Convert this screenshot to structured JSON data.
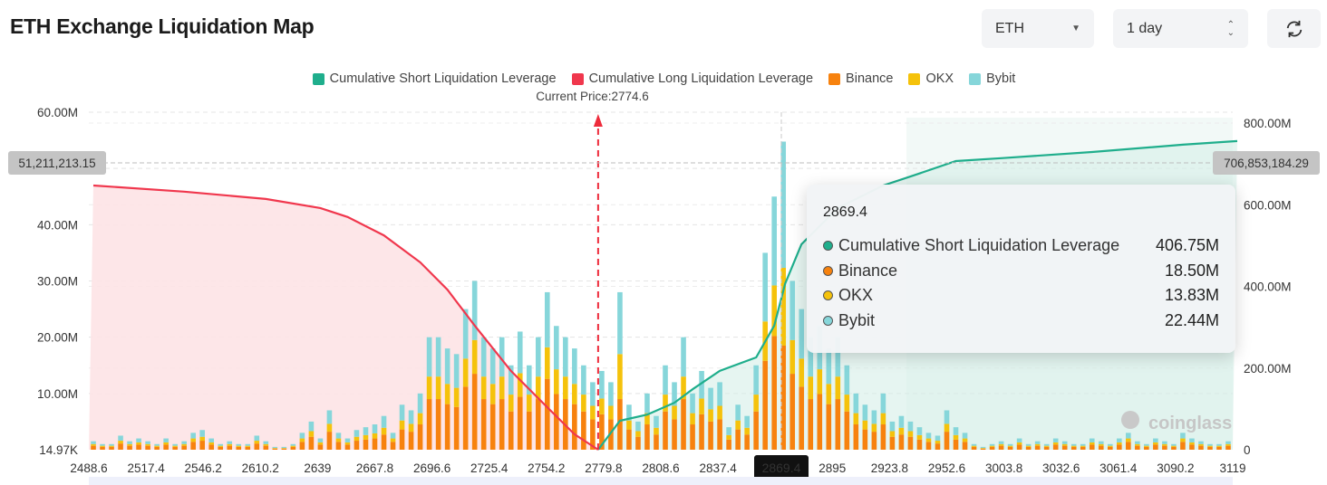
{
  "header": {
    "title": "ETH Exchange Liquidation Map",
    "symbol_select": "ETH",
    "range_select": "1 day",
    "refresh_icon": "refresh-icon"
  },
  "colors": {
    "short": "#1fae8c",
    "long": "#f0374d",
    "binance": "#f7820e",
    "okx": "#f5c20b",
    "bybit": "#86d6da"
  },
  "chart_data": {
    "type": "bar",
    "legend": [
      "Cumulative Short Liquidation Leverage",
      "Cumulative Long Liquidation Leverage",
      "Binance",
      "OKX",
      "Bybit"
    ],
    "legend_placement": "top",
    "current_price_label": "Current Price:2774.6",
    "current_price": 2774.6,
    "x_tick_labels": [
      "2488.6",
      "2517.4",
      "2546.2",
      "2610.2",
      "2639",
      "2667.8",
      "2696.6",
      "2725.4",
      "2754.2",
      "2779.8",
      "2808.6",
      "2837.4",
      "2869.4",
      "2895",
      "2923.8",
      "2952.6",
      "3003.8",
      "3032.6",
      "3061.4",
      "3090.2",
      "3119"
    ],
    "y_left": {
      "ticks": [
        "14.97K",
        "10.00M",
        "20.00M",
        "30.00M",
        "40.00M",
        "60.00M"
      ],
      "range": [
        0,
        60000000
      ]
    },
    "y_right": {
      "ticks": [
        "0",
        "200.00M",
        "400.00M",
        "600.00M",
        "800.00M"
      ],
      "range": [
        0,
        800000000
      ]
    },
    "crosshair": {
      "left_value": "51,211,213.15",
      "right_value": "706,853,184.29",
      "x_label": "2869.4"
    },
    "series_bars_M": {
      "binance": [
        0.7,
        0.5,
        0.5,
        1.1,
        0.7,
        0.9,
        0.7,
        0.5,
        0.9,
        0.5,
        0.7,
        1.4,
        1.6,
        0.9,
        0.5,
        0.7,
        0.5,
        0.5,
        1.1,
        0.7,
        0.2,
        0.2,
        0.5,
        1.4,
        2.3,
        0.9,
        3.2,
        1.4,
        0.9,
        1.6,
        1.8,
        2,
        2.7,
        1.4,
        3.6,
        3.2,
        4.5,
        9,
        9,
        8.1,
        7.6,
        11.2,
        13.5,
        9,
        8.1,
        9,
        6.8,
        9.4,
        6.8,
        9,
        12.6,
        9.9,
        9,
        8.1,
        6.8,
        5.4,
        6.3,
        5.4,
        9,
        3.6,
        2.3,
        4.5,
        2.7,
        6.8,
        5.4,
        9,
        4.5,
        6.3,
        5,
        5.4,
        1.8,
        3.6,
        2.7,
        6.8,
        15.8,
        20.2,
        18.5,
        13.5,
        11.2,
        9,
        9.9,
        8.1,
        9,
        6.8,
        4.5,
        3.6,
        3.2,
        4.5,
        2.3,
        2.7,
        2.3,
        1.8,
        1.4,
        1.1,
        3.2,
        1.8,
        1.4,
        0.5,
        0.2,
        0.5,
        0.7,
        0.5,
        0.9,
        0.5,
        0.7,
        0.5,
        0.9,
        0.7,
        0.5,
        0.5,
        0.9,
        0.7,
        0.5,
        0.9,
        1.4,
        0.7,
        0.5,
        0.9,
        0.7,
        0.5,
        1.4,
        0.9,
        0.7,
        0.5,
        0.5,
        0.7
      ],
      "okx": [
        0.3,
        0.2,
        0.2,
        0.5,
        0.3,
        0.4,
        0.3,
        0.2,
        0.4,
        0.2,
        0.3,
        0.6,
        0.7,
        0.4,
        0.2,
        0.3,
        0.2,
        0.2,
        0.5,
        0.3,
        0.1,
        0.1,
        0.2,
        0.6,
        1,
        0.4,
        1.4,
        0.6,
        0.4,
        0.7,
        0.8,
        0.9,
        1.2,
        0.6,
        1.6,
        1.4,
        2,
        4,
        4,
        3.6,
        3.4,
        5,
        6,
        4,
        3.6,
        4,
        3,
        4.2,
        3,
        4,
        5.6,
        4.4,
        4,
        3.6,
        3,
        2.4,
        2.8,
        2.4,
        8,
        1.6,
        1,
        2,
        1.2,
        3,
        2.4,
        4,
        2,
        2.8,
        2.2,
        2.4,
        0.8,
        1.6,
        1.2,
        3,
        7,
        9,
        13.83,
        6,
        5,
        4,
        4.4,
        3.6,
        4,
        3,
        2,
        1.6,
        1.4,
        2,
        1,
        1.2,
        1,
        0.8,
        0.6,
        0.5,
        1.4,
        0.8,
        0.6,
        0.2,
        0.1,
        0.2,
        0.3,
        0.2,
        0.4,
        0.2,
        0.3,
        0.2,
        0.4,
        0.3,
        0.2,
        0.2,
        0.4,
        0.3,
        0.2,
        0.4,
        0.6,
        0.3,
        0.2,
        0.4,
        0.3,
        0.2,
        0.6,
        0.4,
        0.3,
        0.2,
        0.2,
        0.3
      ],
      "bybit": [
        0.5,
        0.3,
        0.3,
        0.9,
        0.5,
        0.7,
        0.5,
        0.3,
        0.7,
        0.3,
        0.5,
        1,
        1.2,
        0.7,
        0.3,
        0.5,
        0.3,
        0.3,
        0.9,
        0.5,
        0.2,
        0.2,
        0.3,
        1,
        1.7,
        0.7,
        2.4,
        1,
        0.7,
        1.2,
        1.4,
        1.6,
        2.1,
        1,
        2.8,
        2.4,
        3.5,
        7,
        7,
        6.3,
        6,
        8.8,
        10.5,
        7,
        6.3,
        7,
        5.2,
        7.4,
        5.2,
        7,
        9.8,
        7.7,
        7,
        6.3,
        5.2,
        4.2,
        4.9,
        4.2,
        11,
        2.8,
        1.7,
        3.5,
        2.1,
        5.2,
        4.2,
        7,
        3.5,
        4.9,
        3.8,
        4.2,
        1.4,
        2.8,
        2.1,
        5.2,
        12.2,
        15.8,
        22.44,
        10.5,
        8.8,
        7,
        7.7,
        6.3,
        7,
        5.2,
        3.5,
        2.8,
        2.4,
        3.5,
        1.7,
        2.1,
        1.7,
        1.4,
        1,
        0.9,
        2.4,
        1.4,
        1,
        0.3,
        0.2,
        0.3,
        0.5,
        0.3,
        0.7,
        0.3,
        0.5,
        0.3,
        0.7,
        0.5,
        0.3,
        0.3,
        0.7,
        0.5,
        0.3,
        0.7,
        1,
        0.5,
        0.3,
        0.7,
        0.5,
        0.3,
        1,
        0.7,
        0.5,
        0.3,
        0.3,
        0.5
      ]
    },
    "cumulative_long_M": [
      [
        0,
        647
      ],
      [
        10,
        632
      ],
      [
        19,
        614
      ],
      [
        25,
        592
      ],
      [
        28,
        570
      ],
      [
        32,
        525
      ],
      [
        36,
        459
      ],
      [
        39,
        392
      ],
      [
        42,
        304
      ],
      [
        46,
        193
      ],
      [
        50,
        104
      ],
      [
        53,
        38
      ],
      [
        55.6,
        0
      ]
    ],
    "cumulative_short_M": [
      [
        55.6,
        0
      ],
      [
        58,
        71
      ],
      [
        61,
        86
      ],
      [
        64,
        115
      ],
      [
        66,
        148
      ],
      [
        69,
        193
      ],
      [
        73,
        226
      ],
      [
        75,
        304
      ],
      [
        76.2,
        406.75
      ],
      [
        78,
        503
      ],
      [
        82,
        592
      ],
      [
        87,
        647
      ],
      [
        90,
        669
      ],
      [
        95,
        707
      ],
      [
        100,
        714
      ],
      [
        110,
        729
      ],
      [
        120,
        747
      ],
      [
        126,
        756
      ]
    ],
    "tooltip": {
      "title": "2869.4",
      "rows": [
        {
          "label": "Cumulative Short Liquidation Leverage",
          "value": "406.75M",
          "color": "#1fae8c"
        },
        {
          "label": "Binance",
          "value": "18.50M",
          "color": "#f7820e"
        },
        {
          "label": "OKX",
          "value": "13.83M",
          "color": "#f5c20b"
        },
        {
          "label": "Bybit",
          "value": "22.44M",
          "color": "#86d6da"
        }
      ]
    },
    "watermark": "coinglass",
    "grid": true
  }
}
